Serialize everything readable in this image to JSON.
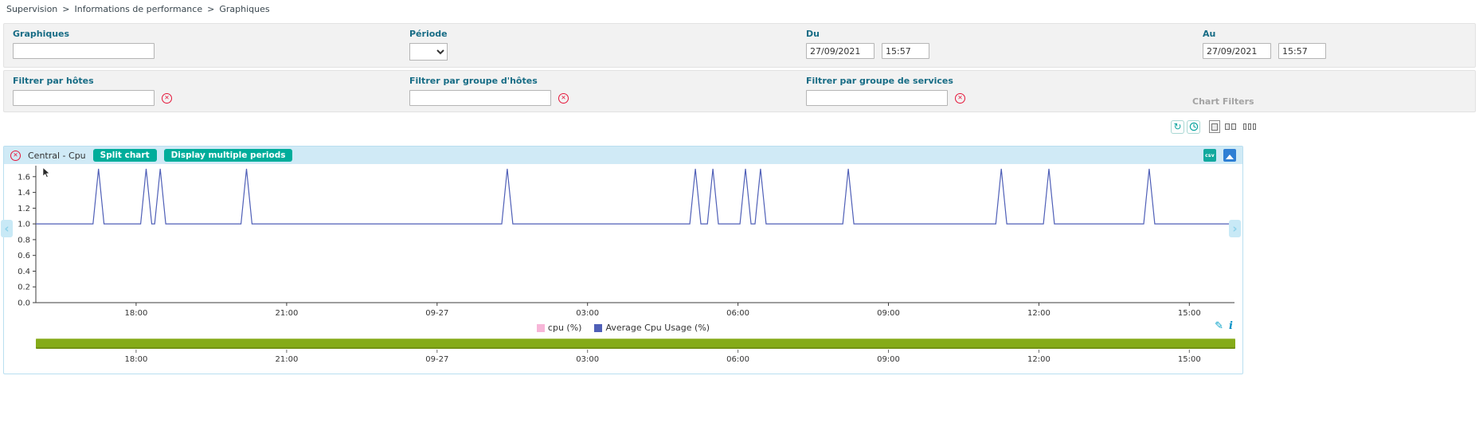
{
  "breadcrumb": {
    "separator": ">",
    "items": [
      "Supervision",
      "Informations de performance",
      "Graphiques"
    ]
  },
  "filters": {
    "graphs": {
      "label": "Graphiques",
      "value": ""
    },
    "period": {
      "label": "Période",
      "selected": ""
    },
    "from": {
      "label": "Du",
      "date": "27/09/2021",
      "time": "15:57"
    },
    "to": {
      "label": "Au",
      "date": "27/09/2021",
      "time": "15:57"
    },
    "host": {
      "label": "Filtrer par hôtes",
      "value": ""
    },
    "host_group": {
      "label": "Filtrer par groupe d'hôtes",
      "value": ""
    },
    "service_group": {
      "label": "Filtrer par groupe de services",
      "value": ""
    },
    "caption": "Chart Filters"
  },
  "chart_header": {
    "title": "Central - Cpu",
    "split_button": "Split chart",
    "multiple_periods_button": "Display multiple periods"
  },
  "icons": {
    "close_x": "✕",
    "clear_x": "✕",
    "refresh": "↻",
    "csv_label": "csv",
    "pencil": "✎",
    "info": "i",
    "pan_left": "‹",
    "pan_right": "›"
  },
  "minimap": {
    "color": "#85ab18"
  },
  "chart_data": {
    "type": "line",
    "title": "Central - Cpu",
    "xlabel": "",
    "ylabel": "",
    "x_unit": "hours since 26/09 00:00 (range 26/09 16:00 → 27/09 15:55)",
    "x_range": [
      16.0,
      39.9
    ],
    "x_ticks": [
      {
        "x": 18,
        "label": "18:00"
      },
      {
        "x": 21,
        "label": "21:00"
      },
      {
        "x": 24,
        "label": "09-27"
      },
      {
        "x": 27,
        "label": "03:00"
      },
      {
        "x": 30,
        "label": "06:00"
      },
      {
        "x": 33,
        "label": "09:00"
      },
      {
        "x": 36,
        "label": "12:00"
      },
      {
        "x": 39,
        "label": "15:00"
      }
    ],
    "ylim": [
      0,
      1.75
    ],
    "y_ticks": [
      0,
      0.2,
      0.4,
      0.6,
      0.8,
      1.0,
      1.2,
      1.4,
      1.6
    ],
    "grid": false,
    "legend_position": "bottom",
    "series": [
      {
        "name": "cpu (%)",
        "color": "#f7b6d8"
      },
      {
        "name": "Average Cpu Usage (%)",
        "color": "#4f5fb7",
        "baseline": 1.0,
        "peak": 1.7,
        "spike_half_width_hours": 0.11,
        "spike_times": [
          17.25,
          18.2,
          18.48,
          20.2,
          25.4,
          29.15,
          29.5,
          30.15,
          30.45,
          32.2,
          35.25,
          36.2,
          38.2
        ]
      }
    ]
  }
}
